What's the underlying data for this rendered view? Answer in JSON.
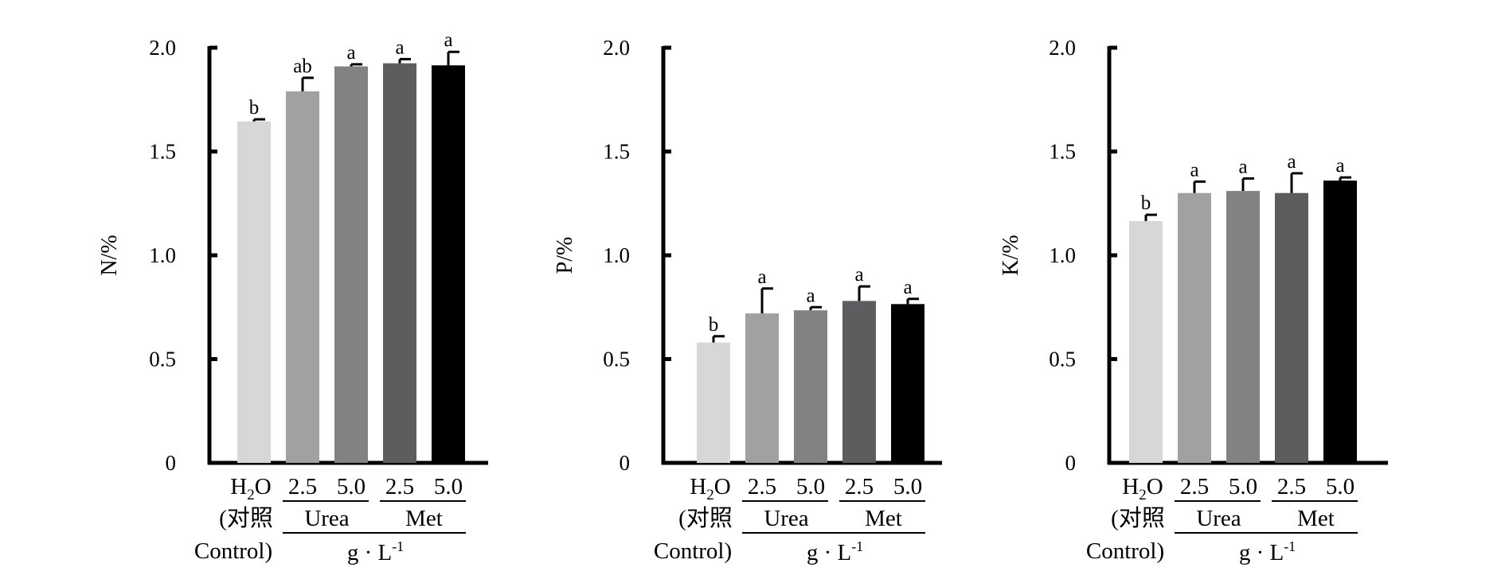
{
  "colors": [
    "#d6d8d8",
    "#a0a1a3",
    "#818283",
    "#5c5d5e",
    "#000000"
  ],
  "x_axis": {
    "categories": [
      "H2O",
      "2.5",
      "5.0",
      "2.5",
      "5.0"
    ],
    "control_label_line1": "H",
    "control_label_sub": "2",
    "control_label_line1_tail": "O",
    "control_label_line2": "(对照",
    "control_label_line3": "Control)",
    "group_urea": "Urea",
    "group_met": "Met",
    "unit_base": "g · L",
    "unit_sup": "-1"
  },
  "chart_data": [
    {
      "type": "bar",
      "ylabel": "N/%",
      "ylim": [
        0,
        2.0
      ],
      "yticks": [
        "0",
        "0.5",
        "1.0",
        "1.5",
        "2.0"
      ],
      "ytick_values": [
        0,
        0.5,
        1.0,
        1.5,
        2.0
      ],
      "categories": [
        "H2O (对照 Control)",
        "Urea 2.5",
        "Urea 5.0",
        "Met 2.5",
        "Met 5.0"
      ],
      "values": [
        1.645,
        1.79,
        1.91,
        1.925,
        1.915
      ],
      "errors": [
        0.01,
        0.065,
        0.01,
        0.02,
        0.065
      ],
      "labels": [
        "b",
        "ab",
        "a",
        "a",
        "a"
      ]
    },
    {
      "type": "bar",
      "ylabel": "P/%",
      "ylim": [
        0,
        2.0
      ],
      "yticks": [
        "0",
        "0.5",
        "1.0",
        "1.5",
        "2.0"
      ],
      "ytick_values": [
        0,
        0.5,
        1.0,
        1.5,
        2.0
      ],
      "categories": [
        "H2O (对照 Control)",
        "Urea 2.5",
        "Urea 5.0",
        "Met 2.5",
        "Met 5.0"
      ],
      "values": [
        0.58,
        0.72,
        0.735,
        0.78,
        0.765
      ],
      "errors": [
        0.03,
        0.12,
        0.015,
        0.07,
        0.025
      ],
      "labels": [
        "b",
        "a",
        "a",
        "a",
        "a"
      ]
    },
    {
      "type": "bar",
      "ylabel": "K/%",
      "ylim": [
        0,
        2.0
      ],
      "yticks": [
        "0",
        "0.5",
        "1.0",
        "1.5",
        "2.0"
      ],
      "ytick_values": [
        0,
        0.5,
        1.0,
        1.5,
        2.0
      ],
      "categories": [
        "H2O (对照 Control)",
        "Urea 2.5",
        "Urea 5.0",
        "Met 2.5",
        "Met 5.0"
      ],
      "values": [
        1.165,
        1.3,
        1.31,
        1.3,
        1.36
      ],
      "errors": [
        0.03,
        0.055,
        0.06,
        0.095,
        0.015
      ],
      "labels": [
        "b",
        "a",
        "a",
        "a",
        "a"
      ]
    }
  ]
}
